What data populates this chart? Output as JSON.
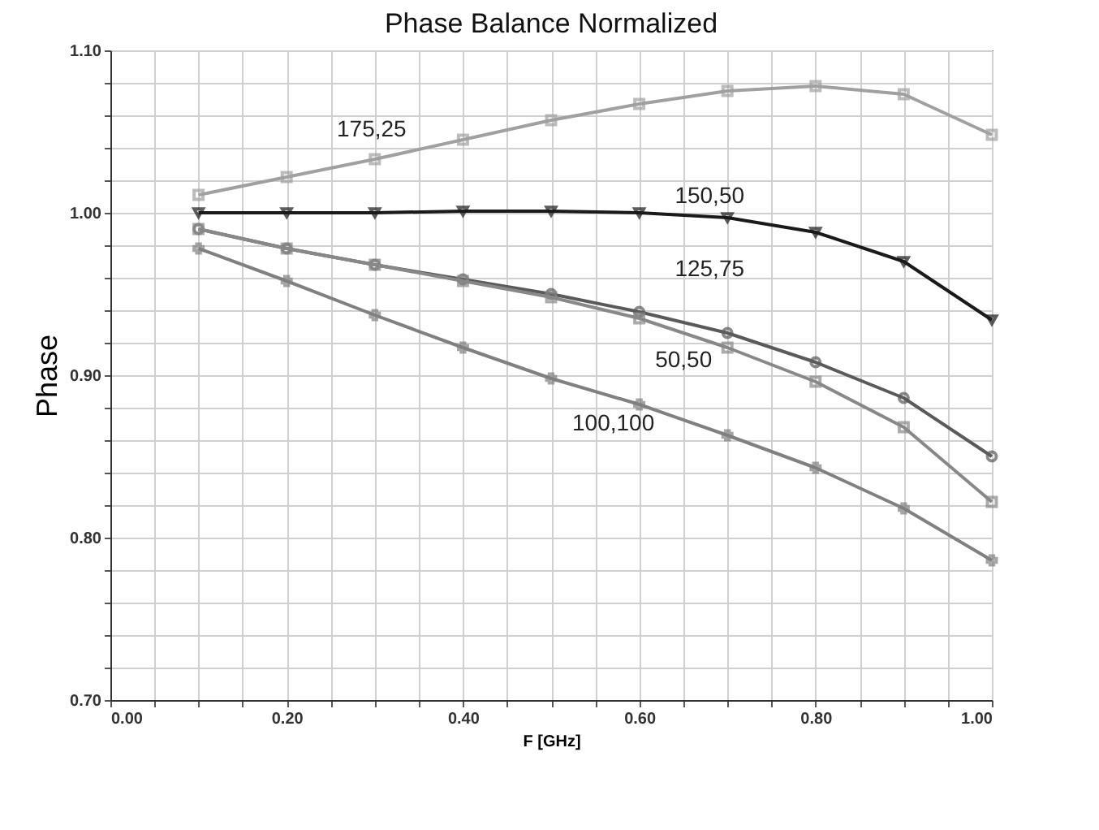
{
  "chart_data": {
    "type": "line",
    "title": "Phase Balance Normalized",
    "xlabel": "F [GHz]",
    "ylabel": "Phase",
    "x": [
      0.1,
      0.2,
      0.3,
      0.4,
      0.5,
      0.6,
      0.7,
      0.8,
      0.9,
      1.0
    ],
    "series": [
      {
        "name": "175,25",
        "color": "#a0a0a0",
        "marker": "square",
        "values": [
          1.011,
          1.022,
          1.033,
          1.045,
          1.057,
          1.067,
          1.075,
          1.078,
          1.073,
          1.048
        ]
      },
      {
        "name": "150,50",
        "color": "#1a1a1a",
        "marker": "triangle",
        "values": [
          1.0,
          1.0,
          1.0,
          1.001,
          1.001,
          1.0,
          0.997,
          0.988,
          0.97,
          0.934
        ]
      },
      {
        "name": "125,75",
        "color": "#5a5a5a",
        "marker": "circle",
        "values": [
          0.99,
          0.978,
          0.968,
          0.959,
          0.95,
          0.939,
          0.926,
          0.908,
          0.886,
          0.85
        ]
      },
      {
        "name": "50,50",
        "color": "#888888",
        "marker": "square",
        "values": [
          0.99,
          0.978,
          0.968,
          0.958,
          0.948,
          0.935,
          0.917,
          0.896,
          0.868,
          0.822
        ]
      },
      {
        "name": "100,100",
        "color": "#808080",
        "marker": "cross",
        "values": [
          0.978,
          0.958,
          0.937,
          0.917,
          0.898,
          0.882,
          0.863,
          0.843,
          0.818,
          0.786
        ]
      }
    ],
    "xlim": [
      0,
      1
    ],
    "xticks": [
      {
        "value": 0,
        "label": "0.00"
      },
      {
        "value": 0.05,
        "label": null
      },
      {
        "value": 0.1,
        "label": null
      },
      {
        "value": 0.15,
        "label": null
      },
      {
        "value": 0.2,
        "label": "0.20"
      },
      {
        "value": 0.25,
        "label": null
      },
      {
        "value": 0.3,
        "label": null
      },
      {
        "value": 0.35,
        "label": null
      },
      {
        "value": 0.4,
        "label": "0.40"
      },
      {
        "value": 0.45,
        "label": null
      },
      {
        "value": 0.5,
        "label": null
      },
      {
        "value": 0.55,
        "label": null
      },
      {
        "value": 0.6,
        "label": "0.60"
      },
      {
        "value": 0.65,
        "label": null
      },
      {
        "value": 0.7,
        "label": null
      },
      {
        "value": 0.75,
        "label": null
      },
      {
        "value": 0.8,
        "label": "0.80"
      },
      {
        "value": 0.85,
        "label": null
      },
      {
        "value": 0.9,
        "label": null
      },
      {
        "value": 0.95,
        "label": null
      },
      {
        "value": 1,
        "label": "1.00"
      }
    ],
    "ylim": [
      0.7,
      1.1
    ],
    "yticks": [
      {
        "value": 0.7,
        "label": "0.70"
      },
      {
        "value": 0.72,
        "label": null
      },
      {
        "value": 0.74,
        "label": null
      },
      {
        "value": 0.76,
        "label": null
      },
      {
        "value": 0.78,
        "label": null
      },
      {
        "value": 0.8,
        "label": "0.80"
      },
      {
        "value": 0.82,
        "label": null
      },
      {
        "value": 0.84,
        "label": null
      },
      {
        "value": 0.86,
        "label": null
      },
      {
        "value": 0.88,
        "label": null
      },
      {
        "value": 0.9,
        "label": "0.90"
      },
      {
        "value": 0.92,
        "label": null
      },
      {
        "value": 0.94,
        "label": null
      },
      {
        "value": 0.96,
        "label": null
      },
      {
        "value": 0.98,
        "label": null
      },
      {
        "value": 1,
        "label": "1.00"
      },
      {
        "value": 1.02,
        "label": null
      },
      {
        "value": 1.04,
        "label": null
      },
      {
        "value": 1.06,
        "label": null
      },
      {
        "value": 1.08,
        "label": null
      },
      {
        "value": 1.1,
        "label": "1.10"
      }
    ],
    "grid": true,
    "line_style": "solid"
  }
}
